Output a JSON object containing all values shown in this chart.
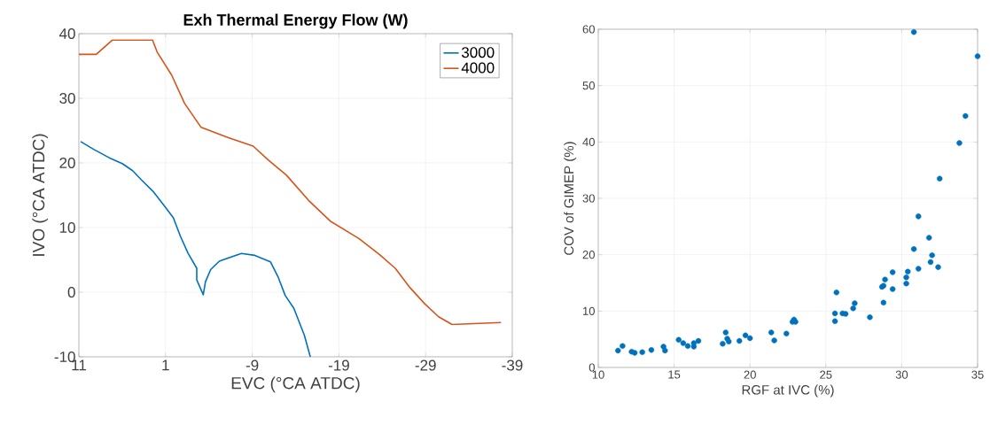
{
  "chart_data": [
    {
      "type": "line",
      "title": "Exh Thermal Energy Flow (W)",
      "xlabel": "EVC (°CA ATDC)",
      "ylabel": "IVO (°CA ATDC)",
      "xlim": [
        11,
        -39
      ],
      "xticks": [
        11,
        1,
        -9,
        -19,
        -29,
        -39
      ],
      "ylim": [
        -10,
        40
      ],
      "yticks": [
        -10,
        0,
        10,
        20,
        30,
        40
      ],
      "grid": true,
      "legend": "top right",
      "series": [
        {
          "name": "3000",
          "color": "#0072bd",
          "x": [
            10.8,
            9.3,
            7.5,
            6.0,
            4.8,
            3.8,
            2.45,
            1.1,
            0.1,
            -0.7,
            -1.6,
            -2.6,
            -2.6,
            -3.35,
            -3.6,
            -4.2,
            -5.2,
            -7.75,
            -9.3,
            -11.1,
            -12.0,
            -12.8,
            -13.8,
            -15.0,
            -15.7
          ],
          "values": [
            23.3,
            22.1,
            20.8,
            19.9,
            18.8,
            17.4,
            15.6,
            13.3,
            11.5,
            8.7,
            6.0,
            3.7,
            1.9,
            -0.4,
            1.6,
            3.5,
            4.8,
            6.0,
            5.7,
            4.7,
            2.3,
            -0.5,
            -2.5,
            -6.6,
            -10.0
          ]
        },
        {
          "name": "4000",
          "color": "#d95319",
          "x": [
            11,
            9,
            7.15,
            2.5,
            1.95,
            0.3,
            -1.2,
            -3.1,
            -6.25,
            -9.1,
            -10.9,
            -12.95,
            -15.5,
            -18,
            -21.3,
            -23.7,
            -25.5,
            -27.2,
            -28.9,
            -30.5,
            -32.05,
            -37.7
          ],
          "values": [
            36.8,
            36.8,
            39.0,
            39.0,
            37.1,
            33.6,
            29.2,
            25.5,
            23.9,
            22.6,
            20.4,
            18.1,
            14.2,
            11.0,
            8.3,
            5.8,
            3.7,
            0.7,
            -1.8,
            -3.8,
            -5.0,
            -4.7
          ]
        }
      ]
    },
    {
      "type": "scatter",
      "xlabel": "RGF at IVC (%)",
      "ylabel": "COV of GIMEP (%)",
      "xlim": [
        10,
        35
      ],
      "xticks": [
        10,
        15,
        20,
        25,
        30,
        35
      ],
      "ylim": [
        0,
        60
      ],
      "yticks": [
        0,
        10,
        20,
        30,
        40,
        50,
        60
      ],
      "grid": true,
      "marker": "circle",
      "series": [
        {
          "color": "#0072bd",
          "x": [
            11.3,
            11.6,
            12.2,
            12.4,
            12.9,
            13.5,
            14.3,
            14.4,
            15.3,
            15.6,
            15.9,
            16.3,
            16.3,
            16.6,
            18.2,
            18.4,
            18.5,
            18.6,
            19.3,
            19.7,
            20.0,
            21.4,
            21.6,
            22.4,
            22.8,
            22.9,
            23.0,
            25.6,
            25.6,
            25.7,
            26.1,
            26.3,
            26.8,
            26.9,
            27.9,
            28.7,
            28.8,
            28.9,
            28.8,
            29.4,
            29.4,
            30.3,
            30.3,
            30.4,
            30.8,
            30.8,
            31.1,
            31.1,
            31.8,
            31.9,
            32.0,
            32.4,
            32.5,
            33.8,
            34.2,
            35.0
          ],
          "values": [
            3.0,
            3.8,
            2.8,
            2.6,
            2.7,
            3.1,
            3.7,
            3.0,
            4.9,
            4.3,
            3.8,
            3.7,
            4.3,
            4.7,
            4.2,
            6.2,
            5.1,
            4.6,
            4.7,
            5.7,
            5.2,
            6.2,
            4.8,
            6.0,
            8.1,
            8.5,
            8.1,
            8.2,
            9.6,
            13.3,
            9.6,
            9.5,
            10.5,
            11.4,
            8.9,
            14.3,
            14.5,
            15.6,
            11.5,
            13.9,
            16.9,
            14.9,
            16.0,
            17.0,
            21.0,
            59.5,
            17.5,
            26.8,
            23.0,
            18.7,
            19.9,
            17.8,
            33.5,
            39.8,
            44.6,
            55.2
          ]
        }
      ]
    }
  ]
}
